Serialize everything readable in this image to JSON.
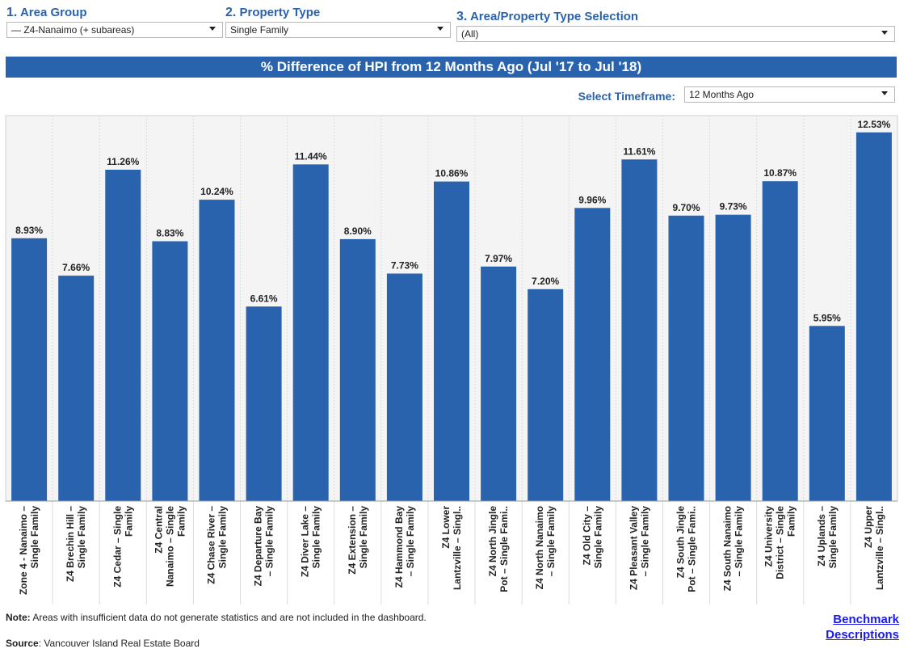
{
  "filters": {
    "area_group": {
      "number": "1.",
      "label": "Area Group",
      "value": "— Z4-Nanaimo (+ subareas)"
    },
    "property_type": {
      "number": "2.",
      "label": "Property Type",
      "value": "Single Family"
    },
    "selection": {
      "number": "3.",
      "label": "Area/Property Type Selection",
      "value": "(All)"
    }
  },
  "timeframe": {
    "label": "Select Timeframe:",
    "value": "12 Months Ago"
  },
  "colors": {
    "accent": "#2a63ad",
    "bar": "#2a63ad",
    "link": "#1a1aee"
  },
  "chart_data": {
    "type": "bar",
    "title": "% Difference of HPI from 12 Months Ago (Jul '17 to Jul '18)",
    "categories": [
      [
        "Zone 4 - Nanaimo –",
        "Single Family"
      ],
      [
        "Z4 Brechin Hill –",
        "Single Family"
      ],
      [
        "Z4 Cedar – Single",
        "Family"
      ],
      [
        "Z4 Central",
        "Nanaimo – Single",
        "Family"
      ],
      [
        "Z4 Chase River –",
        "Single Family"
      ],
      [
        "Z4 Departure Bay",
        "– Single Family"
      ],
      [
        "Z4 Diver Lake –",
        "Single Family"
      ],
      [
        "Z4 Extension –",
        "Single Family"
      ],
      [
        "Z4 Hammond Bay",
        "– Single Family"
      ],
      [
        "Z4 Lower",
        "Lantzville – Singl.."
      ],
      [
        "Z4 North Jingle",
        "Pot – Single Fami.."
      ],
      [
        "Z4 North Nanaimo",
        "– Single Family"
      ],
      [
        "Z4 Old City –",
        "Single Family"
      ],
      [
        "Z4 Pleasant Valley",
        "– Single Family"
      ],
      [
        "Z4 South Jingle",
        "Pot – Single Fami.."
      ],
      [
        "Z4 South Nanaimo",
        "– Single Family"
      ],
      [
        "Z4 University",
        "District – Single",
        "Family"
      ],
      [
        "Z4 Uplands –",
        "Single Family"
      ],
      [
        "Z4 Upper",
        "Lantzville – Singl.."
      ]
    ],
    "values": [
      8.93,
      7.66,
      11.26,
      8.83,
      10.24,
      6.61,
      11.44,
      8.9,
      7.73,
      10.86,
      7.97,
      7.2,
      9.96,
      11.61,
      9.7,
      9.73,
      10.87,
      5.95,
      12.53
    ],
    "labels": [
      "8.93%",
      "7.66%",
      "11.26%",
      "8.83%",
      "10.24%",
      "6.61%",
      "11.44%",
      "8.90%",
      "7.73%",
      "10.86%",
      "7.97%",
      "7.20%",
      "9.96%",
      "11.61%",
      "9.70%",
      "9.73%",
      "10.87%",
      "5.95%",
      "12.53%"
    ],
    "ylim": [
      0,
      13.1
    ]
  },
  "footer": {
    "note_bold": "Note:",
    "note_text": " Areas with insufficient data do not generate statistics and are not included in the dashboard.",
    "source_bold": "Source",
    "source_text": ": Vancouver Island Real Estate Board",
    "link_line1": "Benchmark",
    "link_line2": "Descriptions"
  }
}
